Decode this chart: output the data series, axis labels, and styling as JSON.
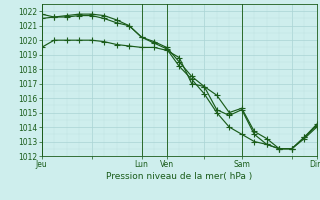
{
  "title": "Pression niveau de la mer( hPa )",
  "bg_color": "#ceeeed",
  "grid_color_major": "#aad4d4",
  "grid_color_minor": "#bde0e0",
  "line_color": "#1a5c1a",
  "ylim": [
    1012,
    1022.5
  ],
  "yticks": [
    1012,
    1013,
    1014,
    1015,
    1016,
    1017,
    1018,
    1019,
    1020,
    1021,
    1022
  ],
  "xtick_labels": [
    "Jeu",
    "",
    "Lun",
    "Ven",
    "",
    "Sam",
    "",
    "Dim"
  ],
  "xtick_positions": [
    0,
    24,
    48,
    60,
    78,
    96,
    120,
    132
  ],
  "vline_positions": [
    0,
    48,
    60,
    96,
    132
  ],
  "total_x": 132,
  "line1": {
    "x": [
      0,
      6,
      12,
      18,
      24,
      30,
      36,
      42,
      48,
      54,
      60,
      66,
      72,
      78,
      84,
      90,
      96,
      102,
      108,
      114,
      120,
      126,
      132
    ],
    "y": [
      1019.5,
      1020.0,
      1020.0,
      1020.0,
      1020.0,
      1019.9,
      1019.7,
      1019.6,
      1019.5,
      1019.5,
      1019.3,
      1018.8,
      1017.0,
      1016.8,
      1016.2,
      1015.0,
      1015.3,
      1013.7,
      1013.2,
      1012.5,
      1012.5,
      1013.2,
      1014.0
    ]
  },
  "line2": {
    "x": [
      0,
      6,
      12,
      18,
      24,
      30,
      36,
      42,
      48,
      54,
      60,
      66,
      72,
      78,
      84,
      90,
      96,
      102,
      108,
      114,
      120,
      126,
      132
    ],
    "y": [
      1021.5,
      1021.6,
      1021.6,
      1021.7,
      1021.7,
      1021.5,
      1021.2,
      1021.0,
      1020.2,
      1019.9,
      1019.5,
      1018.5,
      1017.5,
      1016.8,
      1015.2,
      1014.8,
      1015.2,
      1013.5,
      1012.8,
      1012.5,
      1012.5,
      1013.3,
      1014.1
    ]
  },
  "line3": {
    "x": [
      0,
      6,
      12,
      18,
      24,
      30,
      36,
      42,
      48,
      54,
      60,
      66,
      72,
      78,
      84,
      90,
      96,
      102,
      108,
      114,
      120,
      126,
      132
    ],
    "y": [
      1021.8,
      1021.6,
      1021.7,
      1021.8,
      1021.8,
      1021.7,
      1021.4,
      1021.0,
      1020.2,
      1019.8,
      1019.4,
      1018.2,
      1017.3,
      1016.3,
      1015.0,
      1014.0,
      1013.5,
      1013.0,
      1012.8,
      1012.5,
      1012.5,
      1013.3,
      1014.2
    ]
  }
}
